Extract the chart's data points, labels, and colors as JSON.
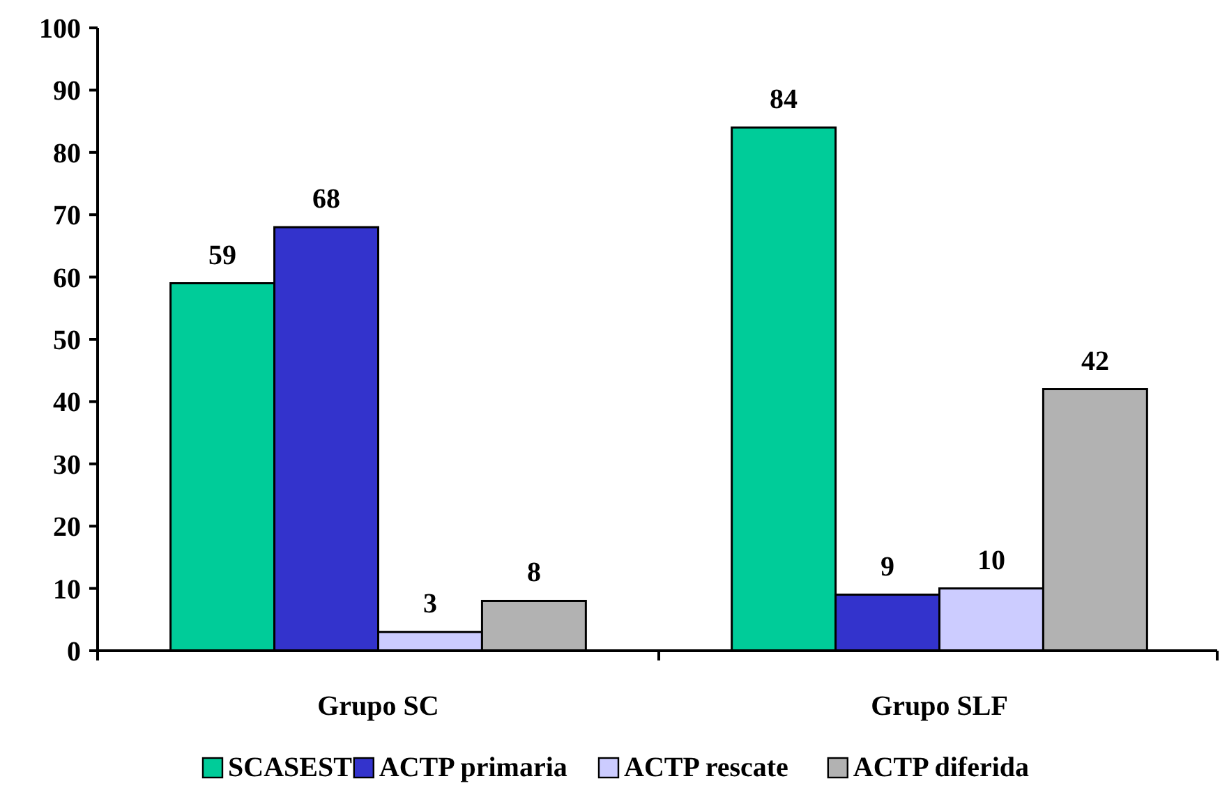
{
  "chart_data": {
    "type": "bar",
    "categories": [
      "Grupo SC",
      "Grupo SLF"
    ],
    "series": [
      {
        "name": "SCASEST",
        "color": "#00cc99",
        "values": [
          59,
          84
        ]
      },
      {
        "name": "ACTP primaria",
        "color": "#3333cc",
        "values": [
          68,
          9
        ]
      },
      {
        "name": "ACTP rescate",
        "color": "#ccccff",
        "values": [
          3,
          10
        ]
      },
      {
        "name": "ACTP diferida",
        "color": "#b2b2b2",
        "values": [
          8,
          42
        ]
      }
    ],
    "ylim": [
      0,
      100
    ],
    "yticks": [
      0,
      10,
      20,
      30,
      40,
      50,
      60,
      70,
      80,
      90,
      100
    ],
    "data_labels": true,
    "legend": "bottom",
    "grid": false
  }
}
